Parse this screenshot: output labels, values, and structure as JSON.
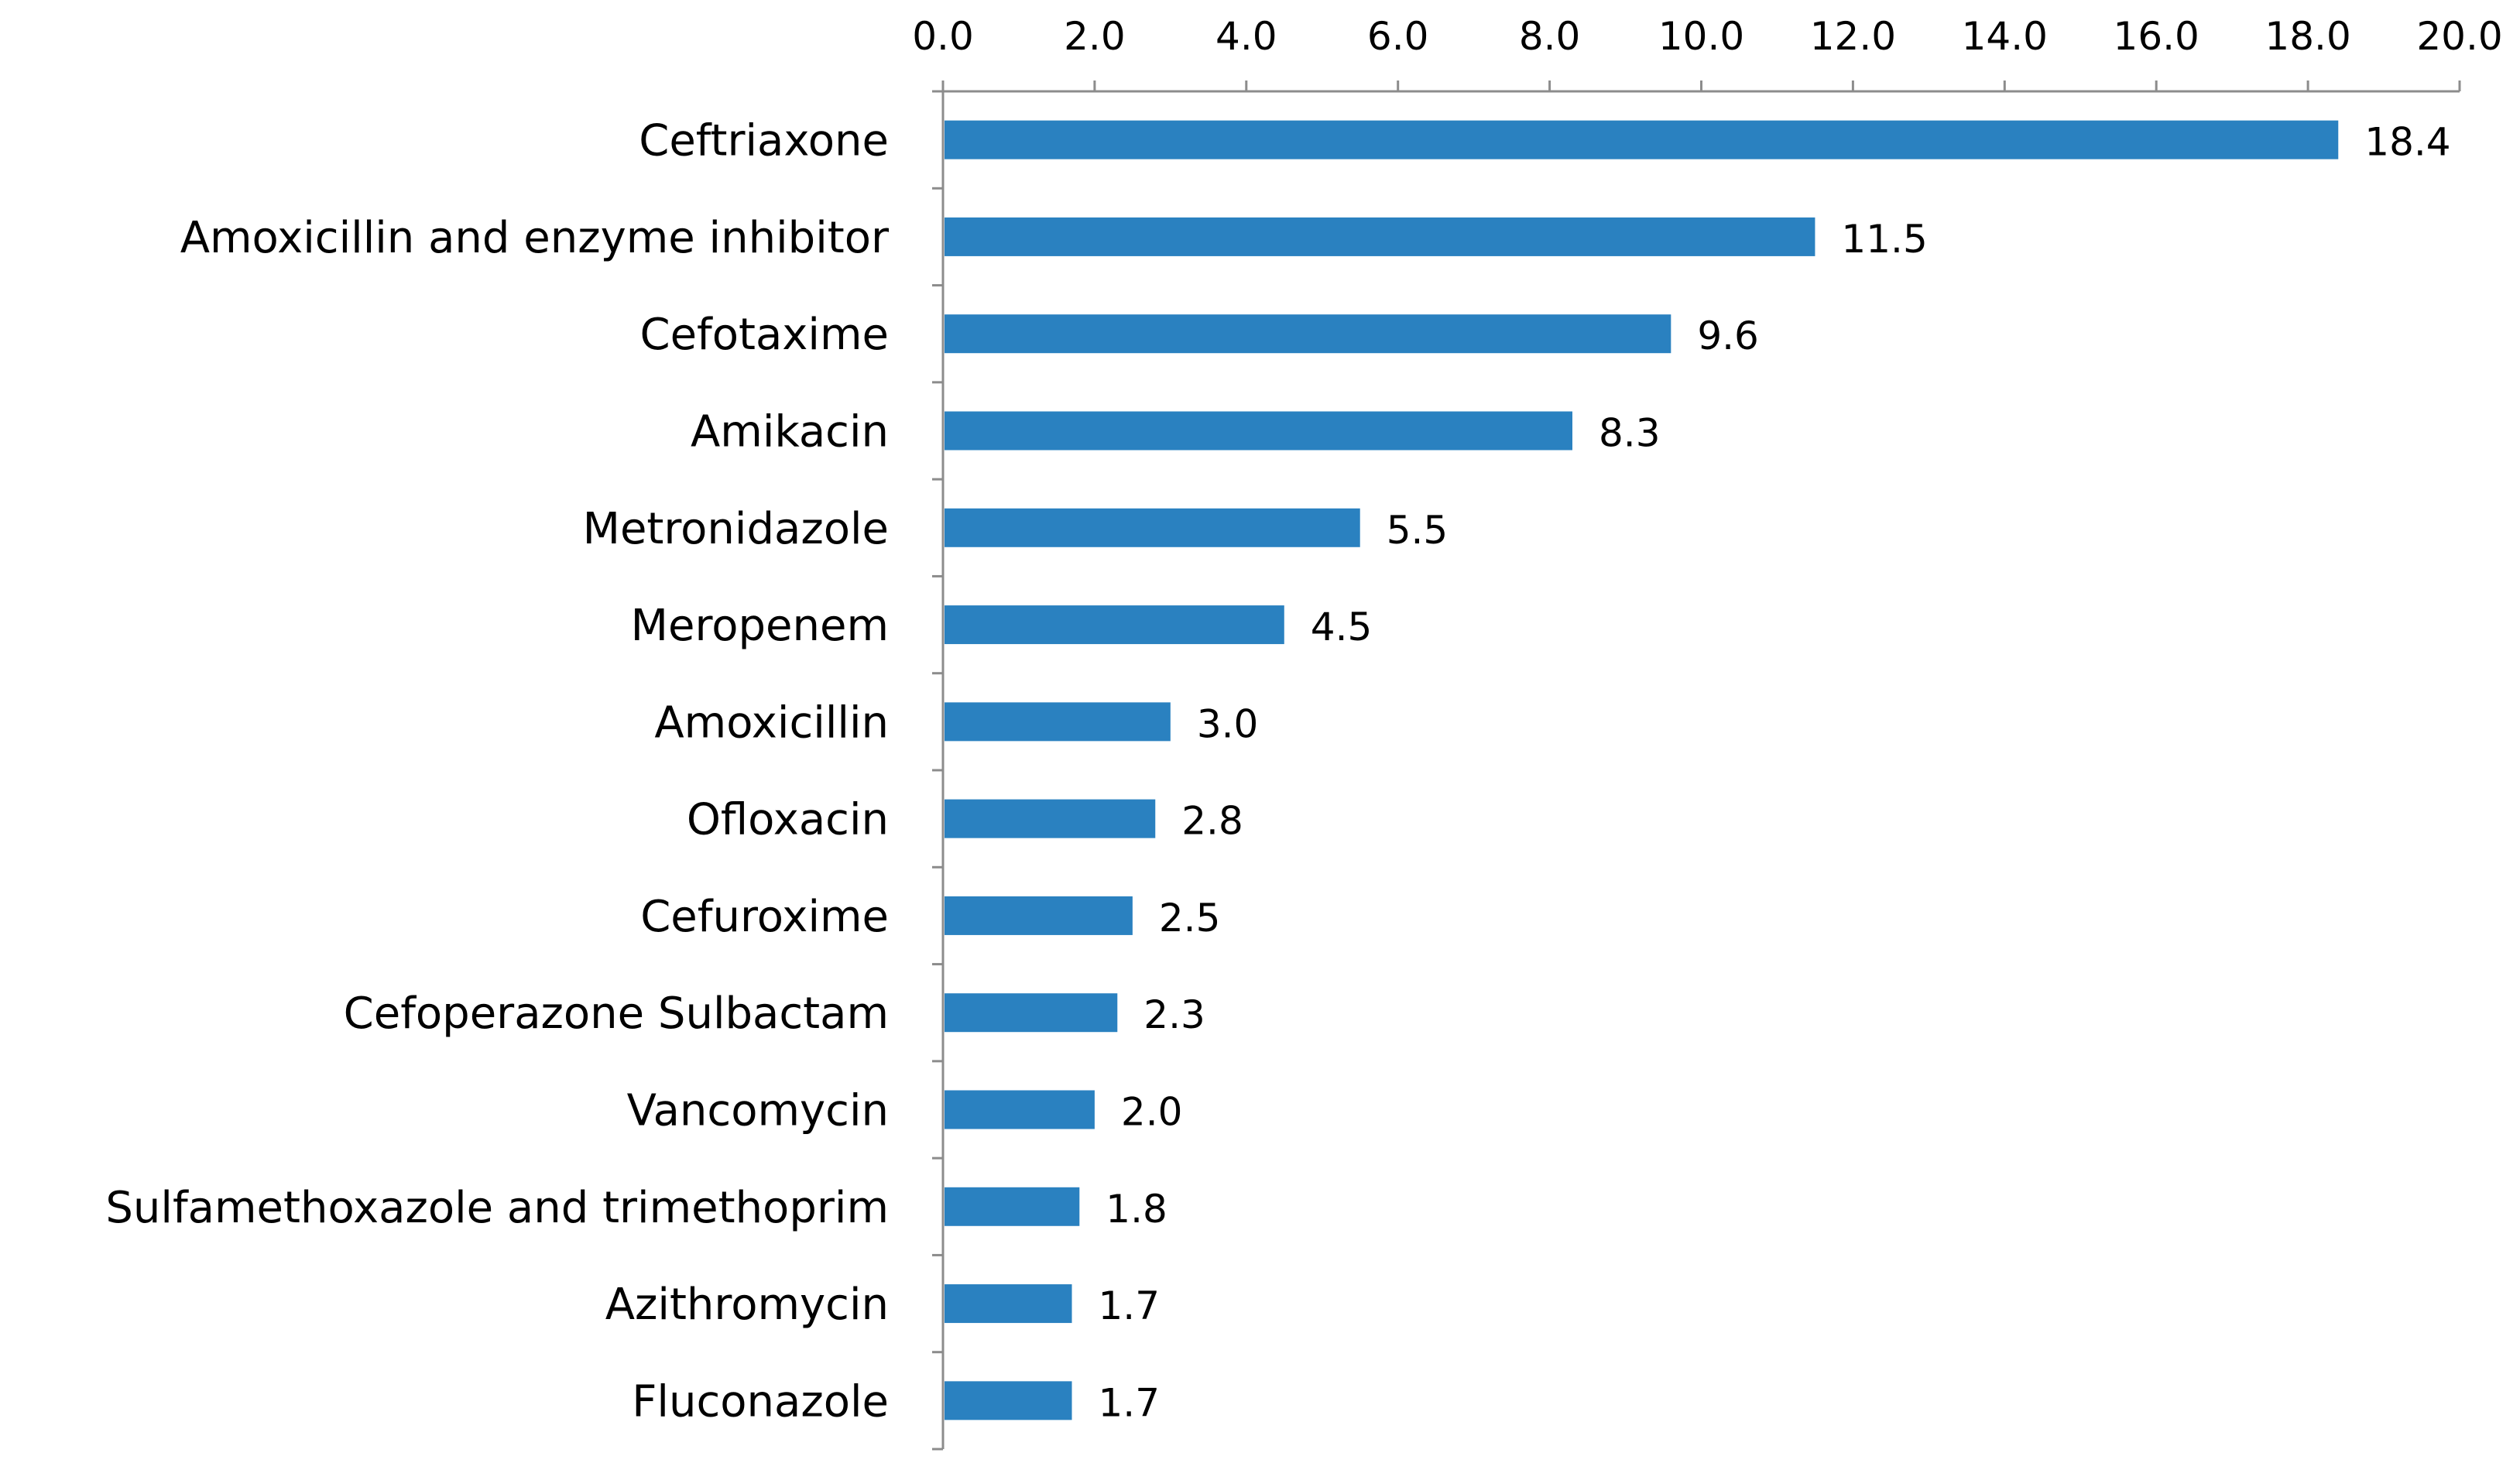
{
  "chart_data": {
    "type": "bar",
    "orientation": "horizontal",
    "x_axis_position": "top",
    "grid": false,
    "legend": "none",
    "bar_color": "#2A81C0",
    "axis_color": "#8C8C8C",
    "xlim": [
      0,
      20
    ],
    "x_ticks": [
      "0.0",
      "2.0",
      "4.0",
      "6.0",
      "8.0",
      "10.0",
      "12.0",
      "14.0",
      "16.0",
      "18.0",
      "20.0"
    ],
    "categories": [
      "Ceftriaxone",
      "Amoxicillin and enzyme inhibitor",
      "Cefotaxime",
      "Amikacin",
      "Metronidazole",
      "Meropenem",
      "Amoxicillin",
      "Ofloxacin",
      "Cefuroxime",
      "Cefoperazone Sulbactam",
      "Vancomycin",
      "Sulfamethoxazole and trimethoprim",
      "Azithromycin",
      "Fluconazole"
    ],
    "values": [
      18.4,
      11.5,
      9.6,
      8.3,
      5.5,
      4.5,
      3.0,
      2.8,
      2.5,
      2.3,
      2.0,
      1.8,
      1.7,
      1.7
    ],
    "value_labels": [
      "18.4",
      "11.5",
      "9.6",
      "8.3",
      "5.5",
      "4.5",
      "3.0",
      "2.8",
      "2.5",
      "2.3",
      "2.0",
      "1.8",
      "1.7",
      "1.7"
    ]
  }
}
